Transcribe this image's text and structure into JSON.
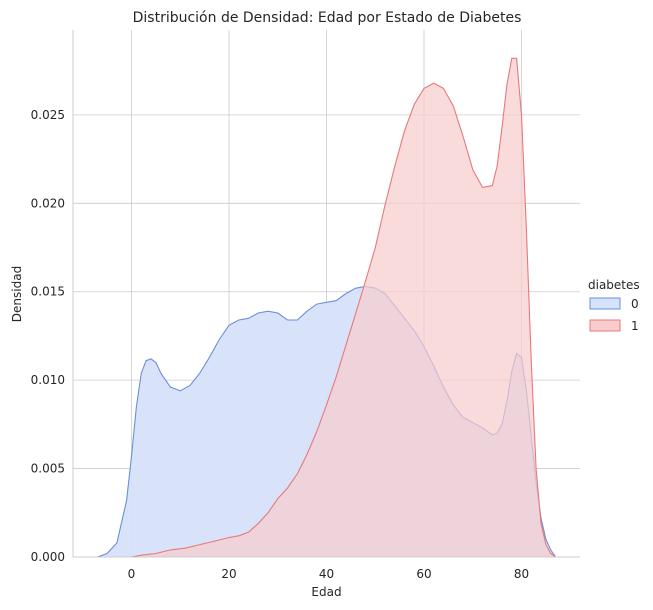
{
  "chart_data": {
    "type": "area",
    "title": "Distribución de Densidad: Edad por Estado de Diabetes",
    "xlabel": "Edad",
    "ylabel": "Densidad",
    "xlim": [
      -12,
      92
    ],
    "ylim": [
      0,
      0.0298
    ],
    "x_ticks": [
      0,
      20,
      40,
      60,
      80
    ],
    "x_tick_labels": [
      "0",
      "20",
      "40",
      "60",
      "80"
    ],
    "y_ticks": [
      0,
      0.005,
      0.01,
      0.015,
      0.02,
      0.025
    ],
    "y_tick_labels": [
      "0.000",
      "0.005",
      "0.010",
      "0.015",
      "0.020",
      "0.025"
    ],
    "grid": true,
    "legend": {
      "title": "diabetes",
      "placement": "right"
    },
    "series": [
      {
        "name": "0",
        "fill": "#d6e1fa",
        "stroke": "#6b8fdc",
        "x": [
          -7,
          -5,
          -3,
          -1,
          0,
          1,
          2,
          3,
          4,
          5,
          6,
          8,
          10,
          12,
          14,
          16,
          18,
          20,
          22,
          24,
          26,
          28,
          30,
          32,
          34,
          36,
          38,
          40,
          42,
          44,
          46,
          48,
          50,
          52,
          54,
          56,
          58,
          60,
          62,
          64,
          66,
          68,
          70,
          72,
          74,
          75,
          76,
          77,
          78,
          79,
          80,
          81,
          82,
          83,
          84,
          85,
          86,
          87
        ],
        "y": [
          0,
          0.0002,
          0.0008,
          0.0032,
          0.0057,
          0.0085,
          0.0104,
          0.0111,
          0.0112,
          0.011,
          0.0104,
          0.0096,
          0.0094,
          0.0097,
          0.0104,
          0.0113,
          0.0123,
          0.0131,
          0.0134,
          0.0135,
          0.0138,
          0.0139,
          0.0138,
          0.0134,
          0.0134,
          0.0139,
          0.0143,
          0.0144,
          0.0145,
          0.0149,
          0.0152,
          0.0153,
          0.0152,
          0.0149,
          0.0142,
          0.0135,
          0.0128,
          0.0119,
          0.0108,
          0.0096,
          0.0086,
          0.0079,
          0.0076,
          0.0073,
          0.0069,
          0.007,
          0.0075,
          0.0088,
          0.0105,
          0.0115,
          0.0113,
          0.0094,
          0.0068,
          0.0042,
          0.0022,
          0.001,
          0.0004,
          0
        ]
      },
      {
        "name": "1",
        "fill": "#f8cccc",
        "stroke": "#e8787a",
        "x": [
          0,
          2,
          5,
          8,
          11,
          14,
          17,
          20,
          22,
          24,
          26,
          28,
          30,
          32,
          34,
          36,
          38,
          40,
          42,
          44,
          46,
          48,
          50,
          52,
          54,
          56,
          58,
          60,
          62,
          64,
          66,
          68,
          70,
          72,
          74,
          75,
          76,
          77,
          78,
          79,
          80,
          81,
          82,
          83,
          84,
          85,
          86,
          87
        ],
        "y": [
          0,
          0.0001,
          0.0002,
          0.0004,
          0.0005,
          0.0007,
          0.0009,
          0.0011,
          0.0012,
          0.0014,
          0.0019,
          0.0025,
          0.0033,
          0.0039,
          0.0047,
          0.0058,
          0.0071,
          0.0086,
          0.0102,
          0.012,
          0.0138,
          0.0156,
          0.0175,
          0.0199,
          0.0221,
          0.0241,
          0.0256,
          0.0265,
          0.0268,
          0.0265,
          0.0255,
          0.0238,
          0.0219,
          0.0209,
          0.021,
          0.0221,
          0.0243,
          0.0267,
          0.0282,
          0.0282,
          0.025,
          0.0185,
          0.011,
          0.005,
          0.0019,
          0.0007,
          0.0002,
          0
        ]
      }
    ]
  }
}
